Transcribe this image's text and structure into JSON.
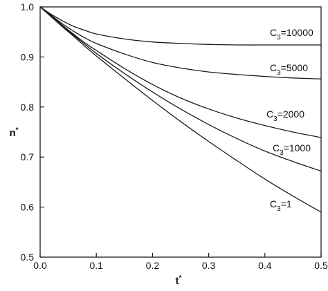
{
  "chart_data": {
    "type": "line",
    "xlabel": "t",
    "xlabel_superscript": "*",
    "ylabel": "n",
    "ylabel_superscript": "*",
    "xlim": [
      0.0,
      0.5
    ],
    "ylim": [
      0.5,
      1.0
    ],
    "x_ticks": [
      "0.0",
      "0.1",
      "0.2",
      "0.3",
      "0.4",
      "0.5"
    ],
    "y_ticks": [
      "0.5",
      "0.6",
      "0.7",
      "0.8",
      "0.9",
      "1.0"
    ],
    "grid": false,
    "legend": "none",
    "series": [
      {
        "label_prefix": "C",
        "label_sub": "3",
        "label_suffix": "=10000",
        "x": [
          0.0,
          0.02,
          0.04,
          0.06,
          0.08,
          0.1,
          0.15,
          0.2,
          0.25,
          0.3,
          0.35,
          0.4,
          0.45,
          0.5
        ],
        "y": [
          1.0,
          0.985,
          0.972,
          0.961,
          0.953,
          0.946,
          0.936,
          0.93,
          0.927,
          0.925,
          0.924,
          0.924,
          0.924,
          0.924
        ]
      },
      {
        "label_prefix": "C",
        "label_sub": "3",
        "label_suffix": "=5000",
        "x": [
          0.0,
          0.02,
          0.04,
          0.06,
          0.08,
          0.1,
          0.15,
          0.2,
          0.25,
          0.3,
          0.35,
          0.4,
          0.45,
          0.5
        ],
        "y": [
          1.0,
          0.983,
          0.966,
          0.951,
          0.938,
          0.927,
          0.906,
          0.889,
          0.878,
          0.87,
          0.865,
          0.861,
          0.858,
          0.856
        ]
      },
      {
        "label_prefix": "C",
        "label_sub": "3",
        "label_suffix": "=2000",
        "x": [
          0.0,
          0.02,
          0.04,
          0.06,
          0.08,
          0.1,
          0.15,
          0.2,
          0.25,
          0.3,
          0.35,
          0.4,
          0.45,
          0.5
        ],
        "y": [
          1.0,
          0.982,
          0.963,
          0.945,
          0.928,
          0.913,
          0.877,
          0.845,
          0.818,
          0.796,
          0.778,
          0.763,
          0.75,
          0.739
        ]
      },
      {
        "label_prefix": "C",
        "label_sub": "3",
        "label_suffix": "=1000",
        "x": [
          0.0,
          0.02,
          0.04,
          0.06,
          0.08,
          0.1,
          0.15,
          0.2,
          0.25,
          0.3,
          0.35,
          0.4,
          0.45,
          0.5
        ],
        "y": [
          1.0,
          0.981,
          0.962,
          0.943,
          0.925,
          0.907,
          0.867,
          0.83,
          0.796,
          0.765,
          0.737,
          0.712,
          0.691,
          0.672
        ]
      },
      {
        "label_prefix": "C",
        "label_sub": "3",
        "label_suffix": "=1",
        "x": [
          0.0,
          0.02,
          0.04,
          0.06,
          0.08,
          0.1,
          0.15,
          0.2,
          0.25,
          0.3,
          0.35,
          0.4,
          0.45,
          0.5
        ],
        "y": [
          1.0,
          0.98,
          0.96,
          0.941,
          0.921,
          0.902,
          0.857,
          0.813,
          0.771,
          0.731,
          0.693,
          0.656,
          0.622,
          0.59
        ]
      }
    ]
  }
}
